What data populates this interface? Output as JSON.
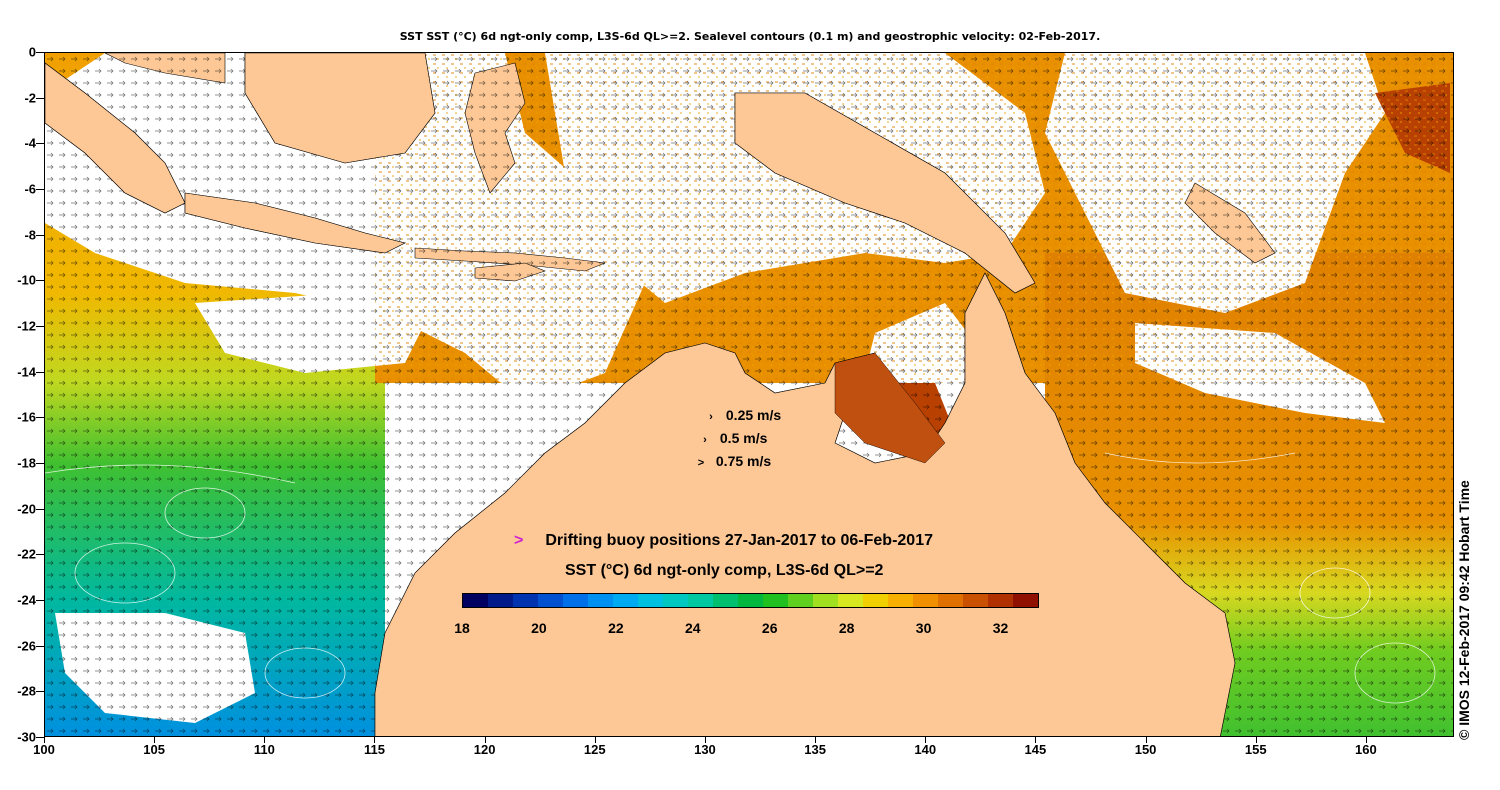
{
  "title": "SST SST (°C) 6d ngt-only comp, L3S-6d QL>=2. Sealevel contours (0.1 m) and geostrophic velocity: 02-Feb-2017.",
  "axes": {
    "x_ticks": [
      "100",
      "105",
      "110",
      "115",
      "120",
      "125",
      "130",
      "135",
      "140",
      "145",
      "150",
      "155",
      "160"
    ],
    "y_ticks": [
      "0",
      "-2",
      "-4",
      "-6",
      "-8",
      "-10",
      "-12",
      "-14",
      "-16",
      "-18",
      "-20",
      "-22",
      "-24",
      "-26",
      "-28",
      "-30"
    ],
    "xlim": [
      100,
      164
    ],
    "ylim": [
      -30,
      0
    ]
  },
  "velocity_legend": [
    {
      "marker": "›",
      "label": "0.25 m/s"
    },
    {
      "marker": "›",
      "label": "0.5 m/s"
    },
    {
      "marker": ">",
      "label": "0.75 m/s"
    }
  ],
  "buoy_legend": {
    "marker": ">",
    "label": "Drifting buoy positions 27-Jan-2017 to 06-Feb-2017",
    "color": "#d020d0"
  },
  "colorbar": {
    "title": "SST (°C) 6d ngt-only comp, L3S-6d QL>=2",
    "ticks": [
      "18",
      "20",
      "22",
      "24",
      "26",
      "28",
      "30",
      "32"
    ],
    "range": [
      18,
      33
    ],
    "colors": [
      "#000060",
      "#001a8a",
      "#0033b0",
      "#0050d0",
      "#0070e8",
      "#0090f0",
      "#00aaf0",
      "#00c0e0",
      "#00c8c0",
      "#00c8a0",
      "#00c070",
      "#00b840",
      "#20c020",
      "#60d020",
      "#a0e020",
      "#d8e820",
      "#f0d000",
      "#f8b000",
      "#f09000",
      "#e07000",
      "#c85000",
      "#b03000",
      "#901000"
    ]
  },
  "credit": "© IMOS 12-Feb-2017 09:42 Hobart Time",
  "colors": {
    "land": "#fdc896",
    "warm": "#e07800",
    "hot": "#b84000",
    "mid": "#f0a000",
    "green": "#40c030",
    "cool": "#00b0c0",
    "cloud": "#ffffff"
  }
}
